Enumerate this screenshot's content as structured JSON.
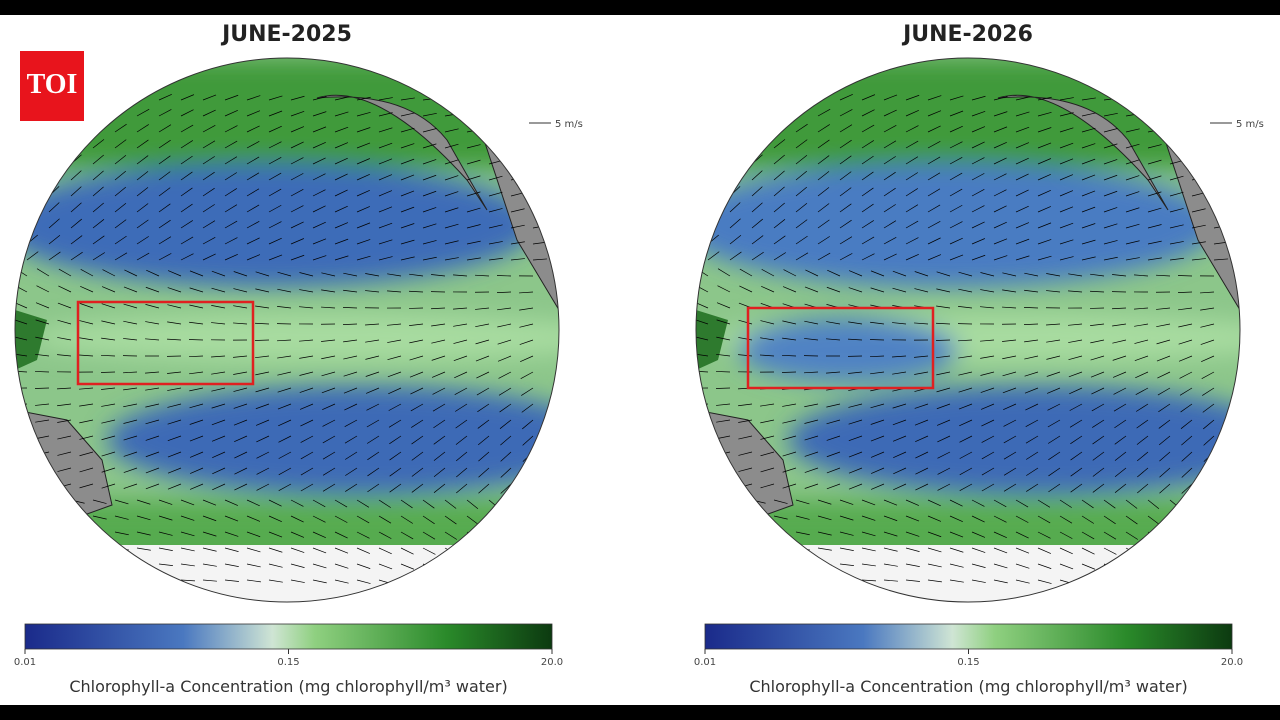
{
  "badge": "TOI",
  "panels": [
    {
      "title": "JUNE-2025",
      "scale_label": "5 m/s",
      "colorbar": {
        "ticks": [
          "0.01",
          "0.15",
          "20.0"
        ],
        "label": "Chlorophyll-a Concentration (mg chlorophyll/m³ water)"
      }
    },
    {
      "title": "JUNE-2026",
      "scale_label": "5 m/s",
      "colorbar": {
        "ticks": [
          "0.01",
          "0.15",
          "20.0"
        ],
        "label": "Chlorophyll-a Concentration (mg chlorophyll/m³ water)"
      }
    }
  ]
}
